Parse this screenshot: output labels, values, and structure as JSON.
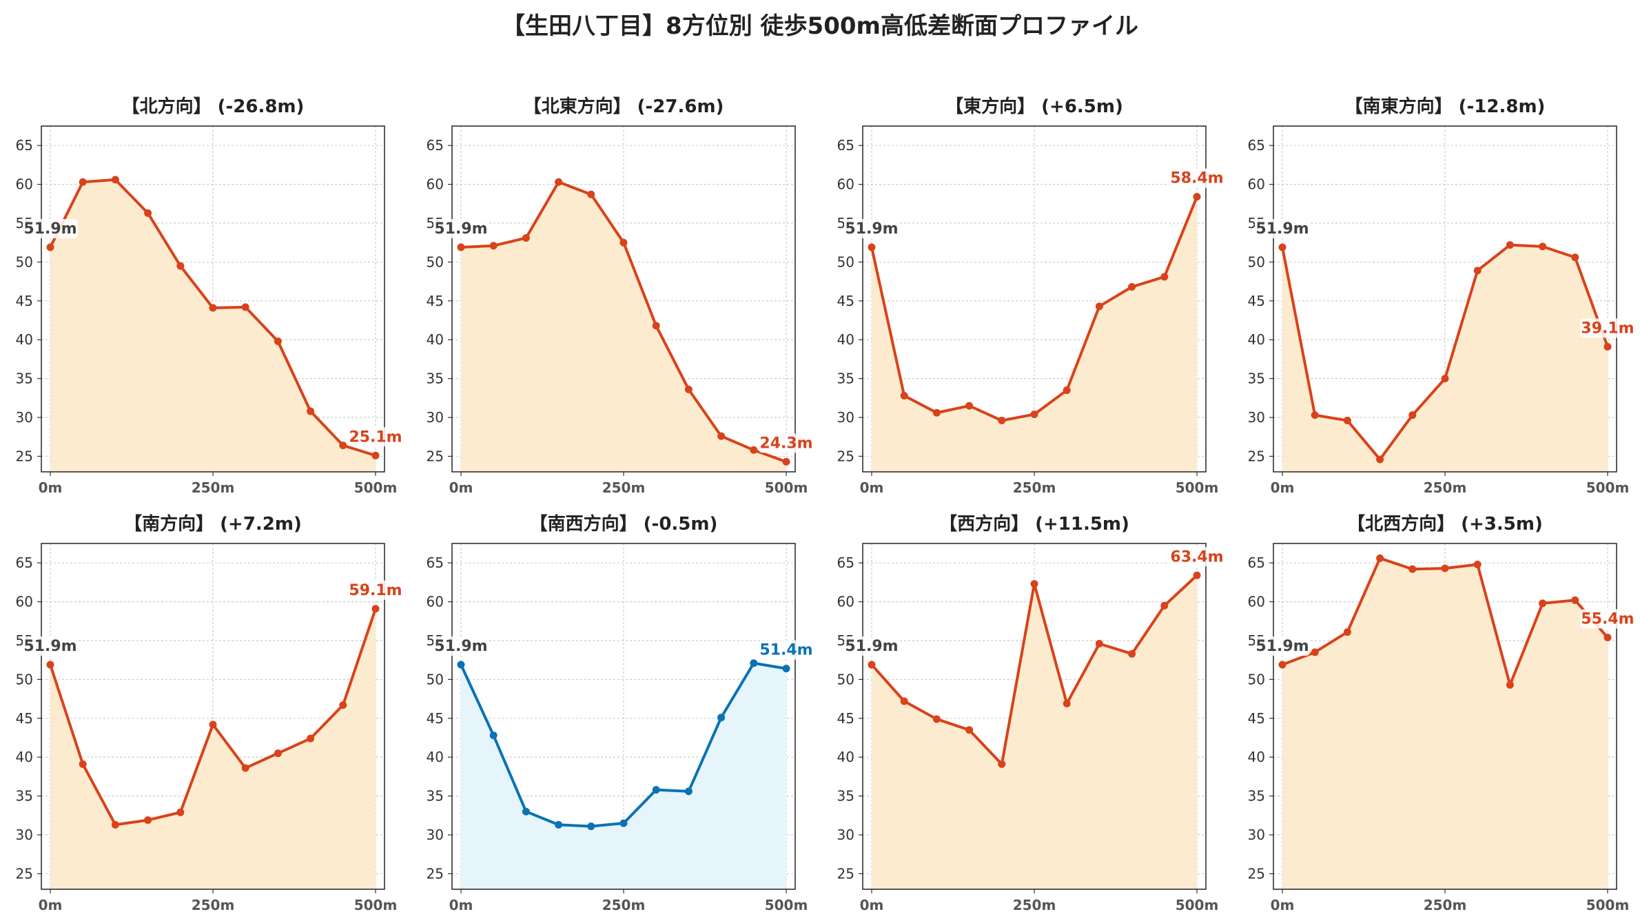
{
  "title": "【生田八丁目】8方位別 徒歩500m高低差断面プロファイル",
  "colors": {
    "up_line": "#d9421a",
    "up_fill": "#fdebd0",
    "flat_line": "#0a72b5",
    "flat_fill": "#e6f5fb",
    "start_label": "#444444"
  },
  "chart_data": [
    {
      "type": "area",
      "title": "【北方向】 (-26.8m)",
      "color_key": "up",
      "x": [
        0,
        50,
        100,
        150,
        200,
        250,
        300,
        350,
        400,
        450,
        500
      ],
      "y": [
        51.9,
        60.3,
        60.6,
        56.3,
        49.5,
        44.1,
        44.2,
        39.8,
        30.8,
        26.4,
        25.1
      ],
      "start_label": "51.9m",
      "end_label": "25.1m",
      "ylim": [
        23,
        67.5
      ],
      "yticks": [
        25,
        30,
        35,
        40,
        45,
        50,
        55,
        60,
        65
      ],
      "xticks": [
        "0m",
        "250m",
        "500m"
      ],
      "grid": true
    },
    {
      "type": "area",
      "title": "【北東方向】 (-27.6m)",
      "color_key": "up",
      "x": [
        0,
        50,
        100,
        150,
        200,
        250,
        300,
        350,
        400,
        450,
        500
      ],
      "y": [
        51.9,
        52.1,
        53.1,
        60.3,
        58.7,
        52.5,
        41.8,
        33.6,
        27.6,
        25.8,
        24.3
      ],
      "start_label": "51.9m",
      "end_label": "24.3m",
      "ylim": [
        23,
        67.5
      ],
      "yticks": [
        25,
        30,
        35,
        40,
        45,
        50,
        55,
        60,
        65
      ],
      "xticks": [
        "0m",
        "250m",
        "500m"
      ],
      "grid": true
    },
    {
      "type": "area",
      "title": "【東方向】 (+6.5m)",
      "color_key": "up",
      "x": [
        0,
        50,
        100,
        150,
        200,
        250,
        300,
        350,
        400,
        450,
        500
      ],
      "y": [
        51.9,
        32.8,
        30.6,
        31.5,
        29.6,
        30.4,
        33.5,
        44.3,
        46.8,
        48.1,
        58.4
      ],
      "start_label": "51.9m",
      "end_label": "58.4m",
      "ylim": [
        23,
        67.5
      ],
      "yticks": [
        25,
        30,
        35,
        40,
        45,
        50,
        55,
        60,
        65
      ],
      "xticks": [
        "0m",
        "250m",
        "500m"
      ],
      "grid": true
    },
    {
      "type": "area",
      "title": "【南東方向】 (-12.8m)",
      "color_key": "up",
      "x": [
        0,
        50,
        100,
        150,
        200,
        250,
        300,
        350,
        400,
        450,
        500
      ],
      "y": [
        51.9,
        30.3,
        29.6,
        24.6,
        30.3,
        35.0,
        48.9,
        52.2,
        52.0,
        50.6,
        39.1
      ],
      "start_label": "51.9m",
      "end_label": "39.1m",
      "ylim": [
        23,
        67.5
      ],
      "yticks": [
        25,
        30,
        35,
        40,
        45,
        50,
        55,
        60,
        65
      ],
      "xticks": [
        "0m",
        "250m",
        "500m"
      ],
      "grid": true
    },
    {
      "type": "area",
      "title": "【南方向】 (+7.2m)",
      "color_key": "up",
      "x": [
        0,
        50,
        100,
        150,
        200,
        250,
        300,
        350,
        400,
        450,
        500
      ],
      "y": [
        51.9,
        39.1,
        31.3,
        31.9,
        32.9,
        44.2,
        38.6,
        40.5,
        42.4,
        46.7,
        59.1
      ],
      "start_label": "51.9m",
      "end_label": "59.1m",
      "ylim": [
        23,
        67.5
      ],
      "yticks": [
        25,
        30,
        35,
        40,
        45,
        50,
        55,
        60,
        65
      ],
      "xticks": [
        "0m",
        "250m",
        "500m"
      ],
      "grid": true
    },
    {
      "type": "area",
      "title": "【南西方向】 (-0.5m)",
      "color_key": "flat",
      "x": [
        0,
        50,
        100,
        150,
        200,
        250,
        300,
        350,
        400,
        450,
        500
      ],
      "y": [
        51.9,
        42.8,
        33.0,
        31.3,
        31.1,
        31.5,
        35.8,
        35.6,
        45.1,
        52.1,
        51.4
      ],
      "start_label": "51.9m",
      "end_label": "51.4m",
      "ylim": [
        23,
        67.5
      ],
      "yticks": [
        25,
        30,
        35,
        40,
        45,
        50,
        55,
        60,
        65
      ],
      "xticks": [
        "0m",
        "250m",
        "500m"
      ],
      "grid": true
    },
    {
      "type": "area",
      "title": "【西方向】 (+11.5m)",
      "color_key": "up",
      "x": [
        0,
        50,
        100,
        150,
        200,
        250,
        300,
        350,
        400,
        450,
        500
      ],
      "y": [
        51.9,
        47.2,
        44.9,
        43.5,
        39.1,
        62.3,
        46.9,
        54.6,
        53.3,
        59.5,
        63.4
      ],
      "start_label": "51.9m",
      "end_label": "63.4m",
      "ylim": [
        23,
        67.5
      ],
      "yticks": [
        25,
        30,
        35,
        40,
        45,
        50,
        55,
        60,
        65
      ],
      "xticks": [
        "0m",
        "250m",
        "500m"
      ],
      "grid": true
    },
    {
      "type": "area",
      "title": "【北西方向】 (+3.5m)",
      "color_key": "up",
      "x": [
        0,
        50,
        100,
        150,
        200,
        250,
        300,
        350,
        400,
        450,
        500
      ],
      "y": [
        51.9,
        53.5,
        56.1,
        65.6,
        64.2,
        64.3,
        64.8,
        49.3,
        59.8,
        60.2,
        55.4
      ],
      "start_label": "51.9m",
      "end_label": "55.4m",
      "ylim": [
        23,
        67.5
      ],
      "yticks": [
        25,
        30,
        35,
        40,
        45,
        50,
        55,
        60,
        65
      ],
      "xticks": [
        "0m",
        "250m",
        "500m"
      ],
      "grid": true
    }
  ]
}
